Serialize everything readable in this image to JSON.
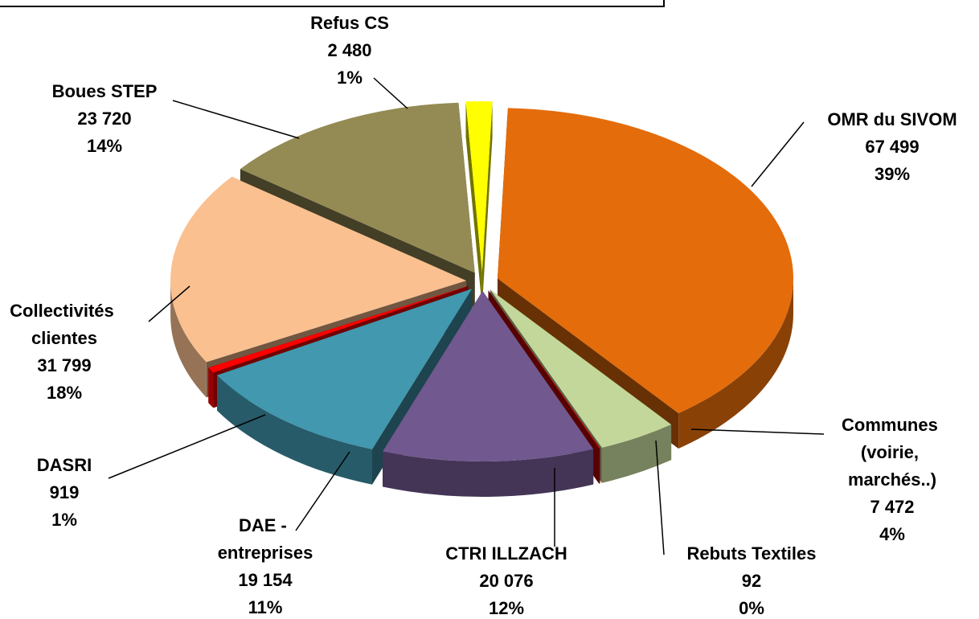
{
  "chart_data": {
    "type": "pie3d",
    "categories": [
      "OMR du SIVOM",
      "Communes (voirie, marchés..)",
      "Rebuts Textiles",
      "CTRI ILLZACH",
      "DAE - entreprises",
      "DASRI",
      "Collectivités clientes",
      "Boues STEP",
      "Refus CS"
    ],
    "values": [
      67499,
      7472,
      92,
      20076,
      19154,
      919,
      31799,
      23720,
      2480
    ],
    "value_labels": [
      "67 499",
      "7 472",
      "92",
      "20 076",
      "19 154",
      "919",
      "31 799",
      "23 720",
      "2 480"
    ],
    "percent_labels": [
      "39%",
      "4%",
      "0%",
      "12%",
      "11%",
      "1%",
      "18%",
      "14%",
      "1%"
    ],
    "colors": [
      "#E46C0A",
      "#C4D79B",
      "#C00000",
      "#71588F",
      "#4198AF",
      "#FF0000",
      "#FAC090",
      "#948A54",
      "#FFFF00"
    ]
  }
}
